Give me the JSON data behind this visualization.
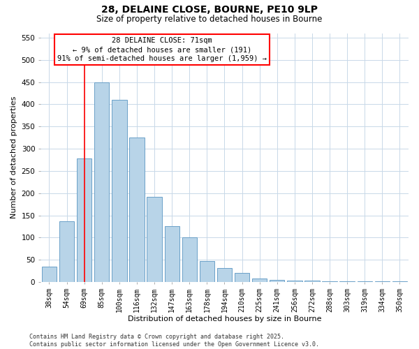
{
  "title": "28, DELAINE CLOSE, BOURNE, PE10 9LP",
  "subtitle": "Size of property relative to detached houses in Bourne",
  "xlabel": "Distribution of detached houses by size in Bourne",
  "ylabel": "Number of detached properties",
  "bar_labels": [
    "38sqm",
    "54sqm",
    "69sqm",
    "85sqm",
    "100sqm",
    "116sqm",
    "132sqm",
    "147sqm",
    "163sqm",
    "178sqm",
    "194sqm",
    "210sqm",
    "225sqm",
    "241sqm",
    "256sqm",
    "272sqm",
    "288sqm",
    "303sqm",
    "319sqm",
    "334sqm",
    "350sqm"
  ],
  "bar_values": [
    35,
    137,
    278,
    450,
    410,
    325,
    192,
    125,
    100,
    47,
    31,
    20,
    8,
    5,
    4,
    3,
    2,
    2,
    1,
    1,
    1
  ],
  "bar_color": "#b8d4e8",
  "bar_edge_color": "#6aa0c8",
  "vline_x": 2,
  "vline_color": "red",
  "ylim": [
    0,
    560
  ],
  "yticks": [
    0,
    50,
    100,
    150,
    200,
    250,
    300,
    350,
    400,
    450,
    500,
    550
  ],
  "annotation_title": "28 DELAINE CLOSE: 71sqm",
  "annotation_line1": "← 9% of detached houses are smaller (191)",
  "annotation_line2": "91% of semi-detached houses are larger (1,959) →",
  "annotation_box_color": "#ffffff",
  "annotation_border_color": "red",
  "footer_line1": "Contains HM Land Registry data © Crown copyright and database right 2025.",
  "footer_line2": "Contains public sector information licensed under the Open Government Licence v3.0.",
  "bg_color": "#ffffff",
  "grid_color": "#c8d8e8"
}
